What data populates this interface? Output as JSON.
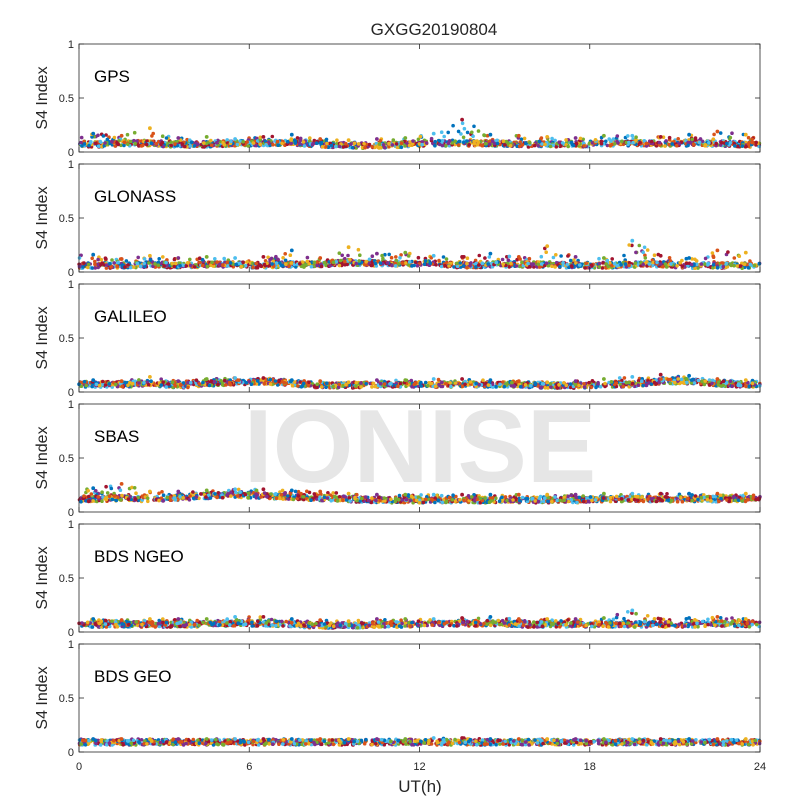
{
  "chart_data": {
    "type": "scatter",
    "title": "GXGG20190804",
    "xlabel": "UT(h)",
    "ylabel": "S4 Index",
    "xlim": [
      0,
      24
    ],
    "ylim": [
      0,
      1
    ],
    "xticks": [
      0,
      6,
      12,
      18,
      24
    ],
    "xtick_labels": [
      "0",
      "6",
      "12",
      "18",
      "24"
    ],
    "yticks": [
      0,
      0.5,
      1
    ],
    "ytick_labels": [
      "0",
      "0.5",
      "1"
    ],
    "watermark": "IONISE",
    "grid": false,
    "series_colors": [
      "#0072BD",
      "#D95319",
      "#EDB120",
      "#7E2F8E",
      "#77AC30",
      "#4DBEEE",
      "#A2142F"
    ],
    "panels": [
      {
        "label": "GPS",
        "x": [
          0.5,
          1.5,
          2.5,
          3.5,
          4.5,
          5.5,
          6.5,
          7.5,
          8.5,
          9.5,
          10.5,
          11.5,
          12.5,
          13.5,
          14.5,
          15.5,
          16.5,
          17.5,
          18.5,
          19.5,
          20.5,
          21.5,
          22.5,
          23.5
        ],
        "baseline": [
          0.07,
          0.08,
          0.08,
          0.07,
          0.07,
          0.08,
          0.08,
          0.09,
          0.07,
          0.06,
          0.06,
          0.07,
          0.08,
          0.08,
          0.08,
          0.07,
          0.07,
          0.07,
          0.08,
          0.08,
          0.08,
          0.08,
          0.08,
          0.07
        ],
        "max": [
          0.17,
          0.15,
          0.22,
          0.13,
          0.14,
          0.12,
          0.14,
          0.16,
          0.12,
          0.11,
          0.12,
          0.13,
          0.17,
          0.3,
          0.16,
          0.15,
          0.14,
          0.13,
          0.15,
          0.15,
          0.14,
          0.16,
          0.19,
          0.16
        ]
      },
      {
        "label": "GLONASS",
        "x": [
          0.5,
          1.5,
          2.5,
          3.5,
          4.5,
          5.5,
          6.5,
          7.5,
          8.5,
          9.5,
          10.5,
          11.5,
          12.5,
          13.5,
          14.5,
          15.5,
          16.5,
          17.5,
          18.5,
          19.5,
          20.5,
          21.5,
          22.5,
          23.5
        ],
        "baseline": [
          0.06,
          0.06,
          0.07,
          0.06,
          0.07,
          0.07,
          0.06,
          0.07,
          0.07,
          0.09,
          0.08,
          0.08,
          0.08,
          0.06,
          0.07,
          0.07,
          0.07,
          0.06,
          0.06,
          0.07,
          0.07,
          0.06,
          0.06,
          0.06
        ],
        "max": [
          0.16,
          0.12,
          0.15,
          0.13,
          0.14,
          0.13,
          0.14,
          0.2,
          0.13,
          0.23,
          0.17,
          0.18,
          0.15,
          0.14,
          0.17,
          0.14,
          0.24,
          0.14,
          0.13,
          0.29,
          0.15,
          0.13,
          0.2,
          0.18
        ]
      },
      {
        "label": "GALILEO",
        "x": [
          0.5,
          1.5,
          2.5,
          3.5,
          4.5,
          5.5,
          6.5,
          7.5,
          8.5,
          9.5,
          10.5,
          11.5,
          12.5,
          13.5,
          14.5,
          15.5,
          16.5,
          17.5,
          18.5,
          19.5,
          20.5,
          21.5,
          22.5,
          23.5
        ],
        "baseline": [
          0.07,
          0.07,
          0.08,
          0.06,
          0.08,
          0.09,
          0.1,
          0.08,
          0.06,
          0.06,
          0.07,
          0.07,
          0.07,
          0.07,
          0.07,
          0.07,
          0.06,
          0.06,
          0.07,
          0.07,
          0.1,
          0.1,
          0.08,
          0.07
        ],
        "max": [
          0.11,
          0.1,
          0.14,
          0.1,
          0.12,
          0.13,
          0.13,
          0.11,
          0.1,
          0.09,
          0.11,
          0.11,
          0.12,
          0.12,
          0.11,
          0.1,
          0.09,
          0.1,
          0.12,
          0.14,
          0.16,
          0.15,
          0.12,
          0.11
        ]
      },
      {
        "label": "SBAS",
        "x": [
          0.5,
          1.5,
          2.5,
          3.5,
          4.5,
          5.5,
          6.5,
          7.5,
          8.5,
          9.5,
          10.5,
          11.5,
          12.5,
          13.5,
          14.5,
          15.5,
          16.5,
          17.5,
          18.5,
          19.5,
          20.5,
          21.5,
          22.5,
          23.5
        ],
        "baseline": [
          0.12,
          0.13,
          0.12,
          0.13,
          0.15,
          0.16,
          0.15,
          0.14,
          0.13,
          0.12,
          0.11,
          0.11,
          0.11,
          0.11,
          0.11,
          0.11,
          0.11,
          0.11,
          0.12,
          0.12,
          0.12,
          0.12,
          0.12,
          0.12
        ],
        "max": [
          0.22,
          0.26,
          0.19,
          0.19,
          0.2,
          0.21,
          0.21,
          0.2,
          0.19,
          0.17,
          0.16,
          0.16,
          0.16,
          0.16,
          0.16,
          0.16,
          0.16,
          0.16,
          0.17,
          0.17,
          0.17,
          0.17,
          0.17,
          0.17
        ]
      },
      {
        "label": "BDS NGEO",
        "x": [
          0.5,
          1.5,
          2.5,
          3.5,
          4.5,
          5.5,
          6.5,
          7.5,
          8.5,
          9.5,
          10.5,
          11.5,
          12.5,
          13.5,
          14.5,
          15.5,
          16.5,
          17.5,
          18.5,
          19.5,
          20.5,
          21.5,
          22.5,
          23.5
        ],
        "baseline": [
          0.07,
          0.07,
          0.07,
          0.07,
          0.07,
          0.08,
          0.08,
          0.07,
          0.06,
          0.06,
          0.07,
          0.07,
          0.07,
          0.08,
          0.08,
          0.07,
          0.07,
          0.07,
          0.07,
          0.07,
          0.07,
          0.07,
          0.08,
          0.07
        ],
        "max": [
          0.12,
          0.11,
          0.12,
          0.12,
          0.12,
          0.14,
          0.14,
          0.12,
          0.11,
          0.1,
          0.12,
          0.12,
          0.12,
          0.13,
          0.14,
          0.12,
          0.12,
          0.12,
          0.13,
          0.2,
          0.12,
          0.13,
          0.14,
          0.12
        ]
      },
      {
        "label": "BDS GEO",
        "x": [
          0.5,
          1.5,
          2.5,
          3.5,
          4.5,
          5.5,
          6.5,
          7.5,
          8.5,
          9.5,
          10.5,
          11.5,
          12.5,
          13.5,
          14.5,
          15.5,
          16.5,
          17.5,
          18.5,
          19.5,
          20.5,
          21.5,
          22.5,
          23.5
        ],
        "baseline": [
          0.09,
          0.09,
          0.09,
          0.09,
          0.09,
          0.09,
          0.09,
          0.09,
          0.09,
          0.09,
          0.09,
          0.09,
          0.09,
          0.09,
          0.09,
          0.09,
          0.09,
          0.09,
          0.09,
          0.09,
          0.09,
          0.09,
          0.09,
          0.09
        ],
        "max": [
          0.12,
          0.12,
          0.12,
          0.12,
          0.12,
          0.12,
          0.12,
          0.12,
          0.12,
          0.12,
          0.12,
          0.12,
          0.13,
          0.13,
          0.12,
          0.12,
          0.12,
          0.12,
          0.12,
          0.12,
          0.12,
          0.12,
          0.12,
          0.12
        ]
      }
    ]
  }
}
